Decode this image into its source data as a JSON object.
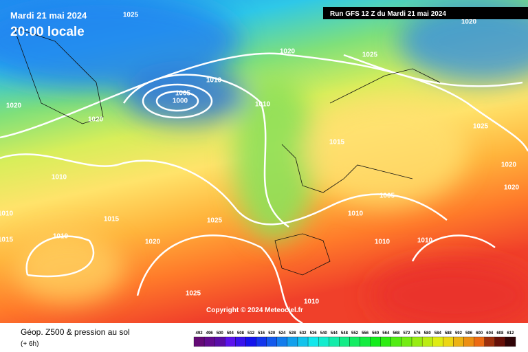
{
  "header": {
    "date": "Mardi 21 mai 2024",
    "time": "20:00 locale",
    "run": "Run GFS 12 Z du Mardi 21 mai 2024"
  },
  "isobars": [
    "1025",
    "1020",
    "1020",
    "1025",
    "1010",
    "1005",
    "1000",
    "1010",
    "1020",
    "1020",
    "1025",
    "1015",
    "1020",
    "1010",
    "1020",
    "1005",
    "1010",
    "1015",
    "1025",
    "1010",
    "1015",
    "1010",
    "1020",
    "1010",
    "1010",
    "1025",
    "1010"
  ],
  "copyright": "Copyright © 2024 Meteociel.fr",
  "footer": {
    "title": "Géop. Z500 & pression au sol",
    "lead": "(+ 6h)"
  },
  "legend": [
    "492",
    "496",
    "500",
    "504",
    "508",
    "512",
    "516",
    "520",
    "524",
    "528",
    "532",
    "536",
    "540",
    "544",
    "548",
    "552",
    "556",
    "560",
    "564",
    "568",
    "572",
    "576",
    "580",
    "584",
    "588",
    "592",
    "596",
    "600",
    "604",
    "608",
    "612"
  ]
}
